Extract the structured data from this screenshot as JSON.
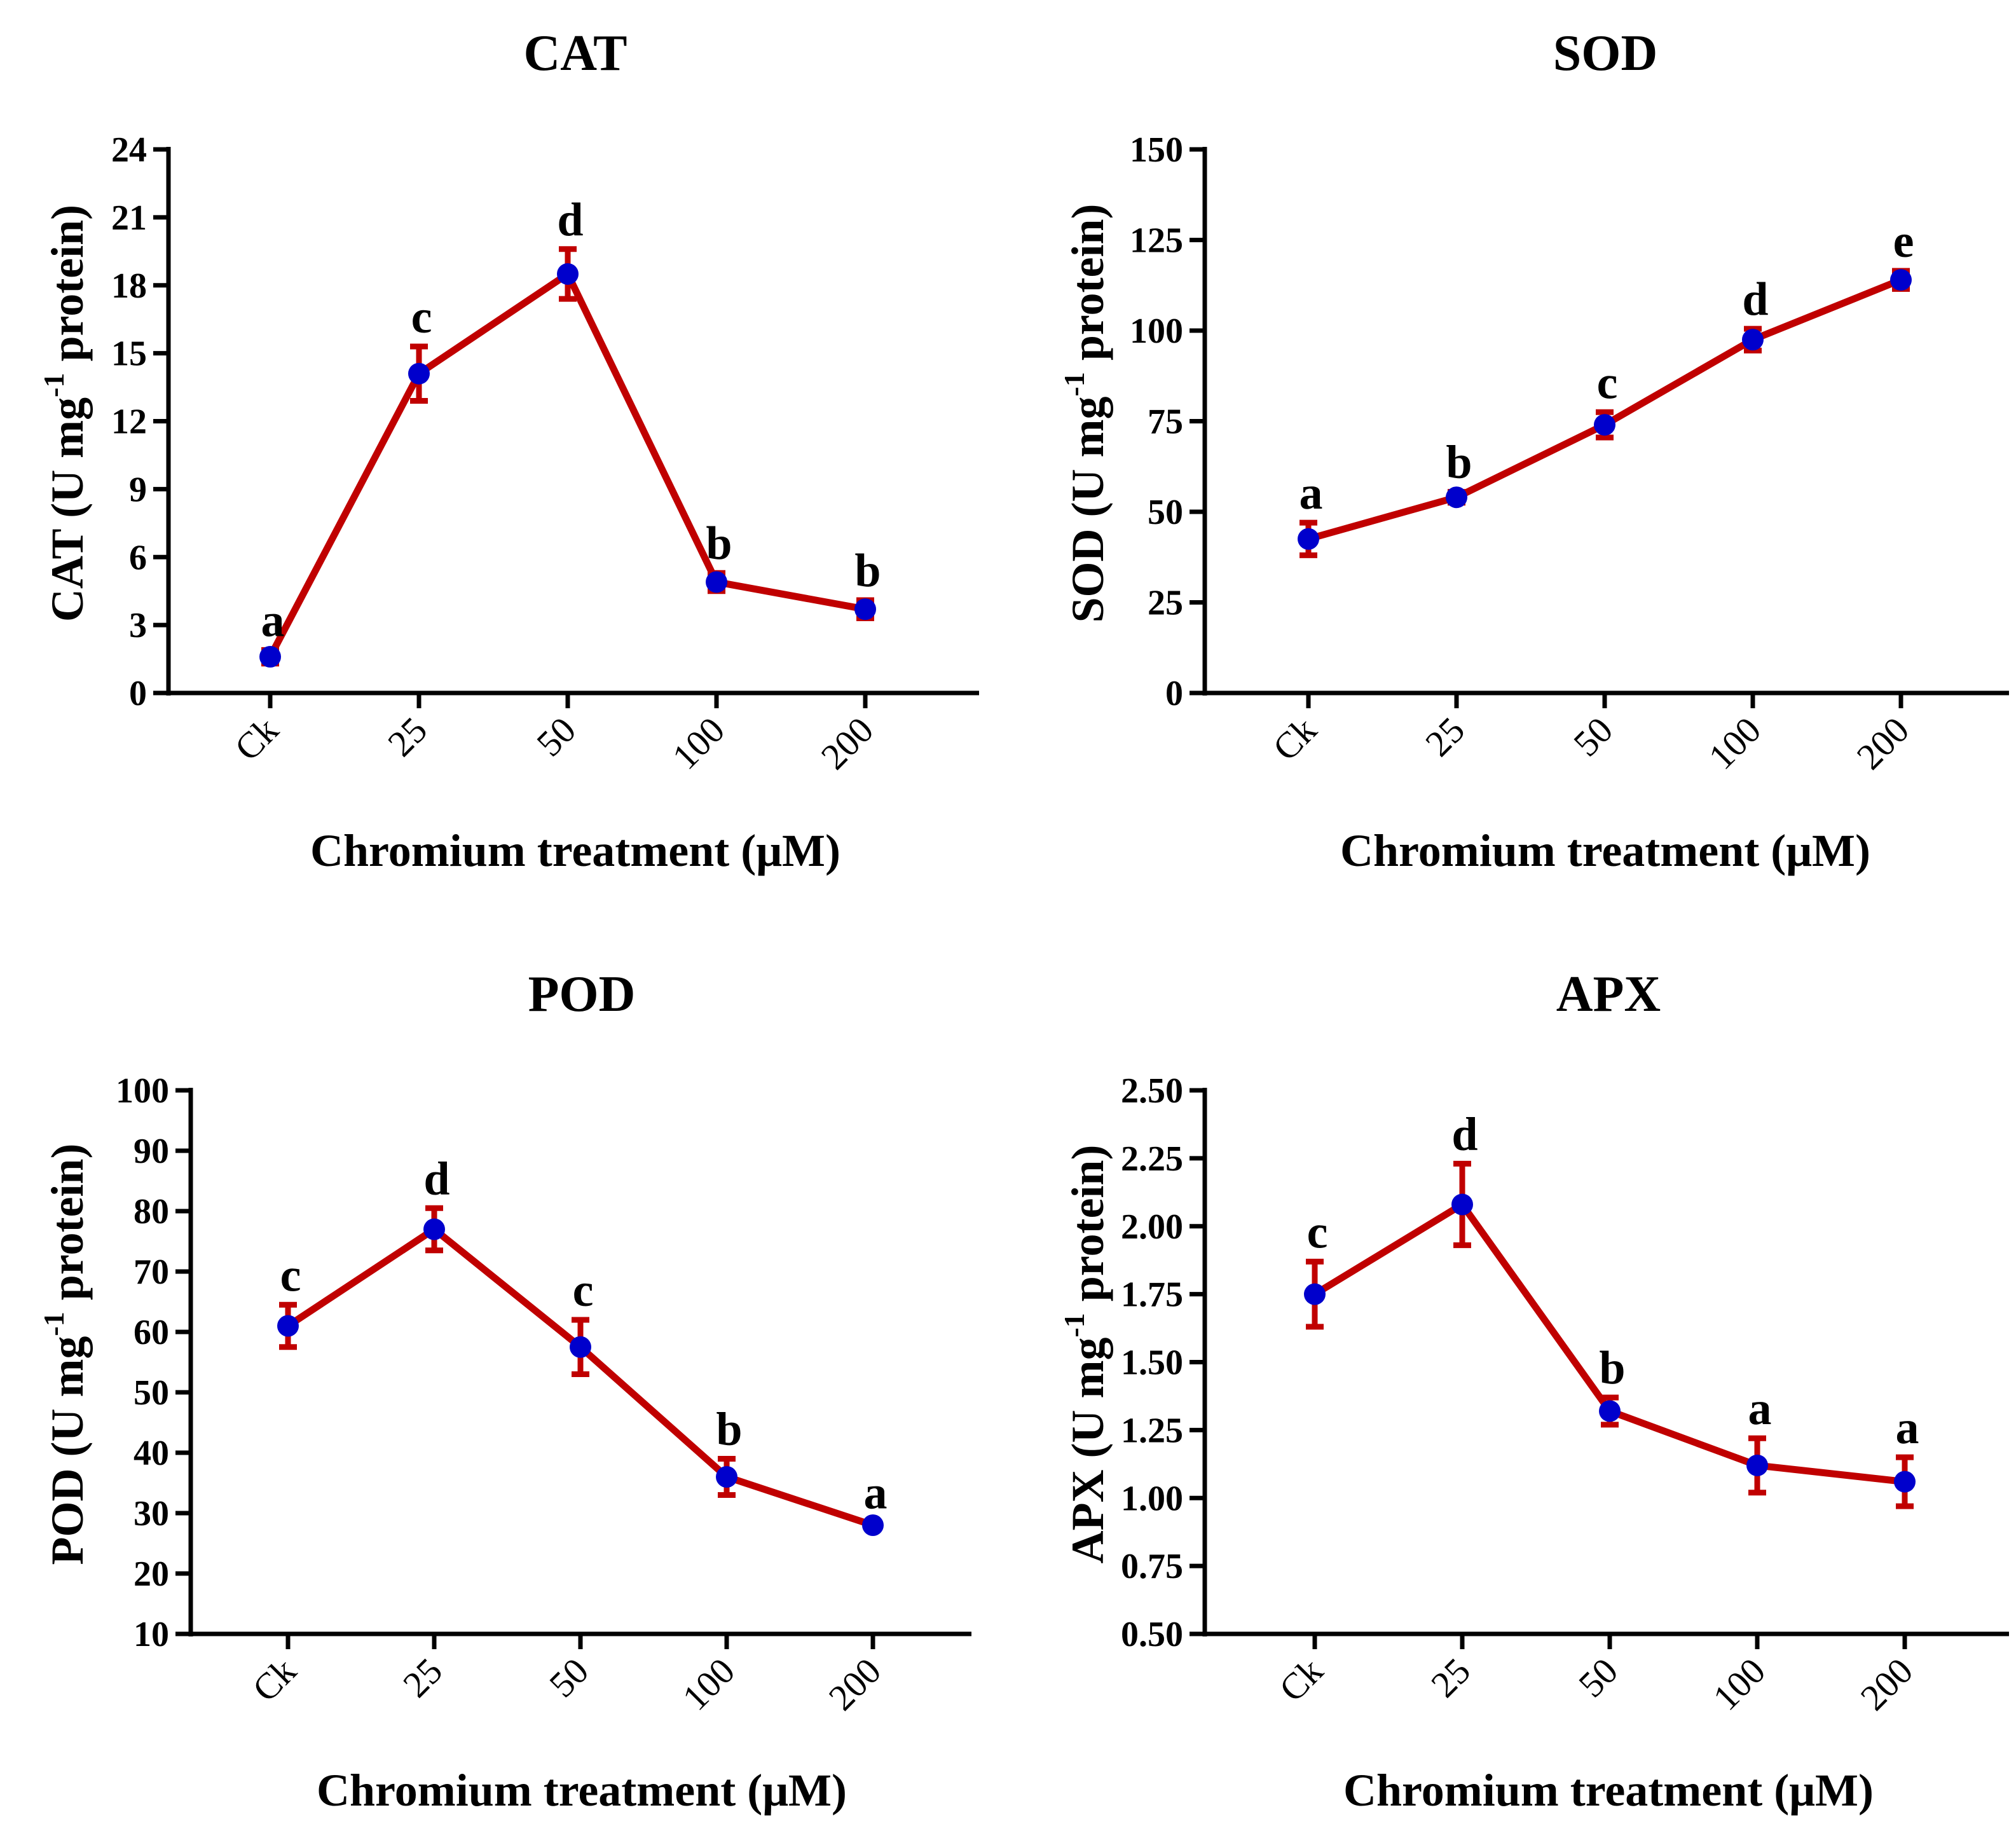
{
  "chart_data": [
    {
      "type": "line",
      "title": "CAT",
      "ylabel": "CAT (U mg-1 protein)",
      "xlabel": "Chromium treatment (μM)",
      "categories": [
        "Ck",
        "25",
        "50",
        "100",
        "200"
      ],
      "values": [
        1.6,
        14.1,
        18.5,
        4.9,
        3.7
      ],
      "errors": [
        0.3,
        1.2,
        1.1,
        0.4,
        0.4
      ],
      "letters": [
        "a",
        "c",
        "d",
        "b",
        "b"
      ],
      "ylim": [
        0,
        24
      ],
      "yticks": [
        "0",
        "3",
        "6",
        "9",
        "12",
        "15",
        "18",
        "21",
        "24"
      ]
    },
    {
      "type": "line",
      "title": "SOD",
      "ylabel": "SOD (U mg-1 protein)",
      "xlabel": "Chromium treatment (μM)",
      "categories": [
        "Ck",
        "25",
        "50",
        "100",
        "200"
      ],
      "values": [
        42.5,
        54.0,
        74.0,
        97.5,
        114.0
      ],
      "errors": [
        4.5,
        1.5,
        3.5,
        3.0,
        2.5
      ],
      "letters": [
        "a",
        "b",
        "c",
        "d",
        "e"
      ],
      "ylim": [
        0,
        150
      ],
      "yticks": [
        "0",
        "25",
        "50",
        "75",
        "100",
        "125",
        "150"
      ]
    },
    {
      "type": "line",
      "title": "POD",
      "ylabel": "POD (U mg-1 protein)",
      "xlabel": "Chromium treatment (μM)",
      "categories": [
        "Ck",
        "25",
        "50",
        "100",
        "200"
      ],
      "values": [
        61.0,
        77.0,
        57.5,
        36.0,
        28.0
      ],
      "errors": [
        3.5,
        3.5,
        4.5,
        3.0,
        0.5
      ],
      "letters": [
        "c",
        "d",
        "c",
        "b",
        "a"
      ],
      "ylim": [
        10,
        100
      ],
      "yticks": [
        "10",
        "20",
        "30",
        "40",
        "50",
        "60",
        "70",
        "80",
        "90",
        "100"
      ]
    },
    {
      "type": "line",
      "title": "APX",
      "ylabel": "APX (U mg-1 protein)",
      "xlabel": "Chromium treatment (μM)",
      "categories": [
        "Ck",
        "25",
        "50",
        "100",
        "200"
      ],
      "values": [
        1.75,
        2.08,
        1.32,
        1.12,
        1.06
      ],
      "errors": [
        0.12,
        0.15,
        0.05,
        0.1,
        0.09
      ],
      "letters": [
        "c",
        "d",
        "b",
        "a",
        "a"
      ],
      "ylim": [
        0.5,
        2.5
      ],
      "yticks": [
        "0.50",
        "0.75",
        "1.00",
        "1.25",
        "1.50",
        "1.75",
        "2.00",
        "2.25",
        "2.50"
      ]
    }
  ],
  "colors": {
    "line": "#c00000",
    "marker": "#0000cc",
    "axis": "#000000"
  }
}
